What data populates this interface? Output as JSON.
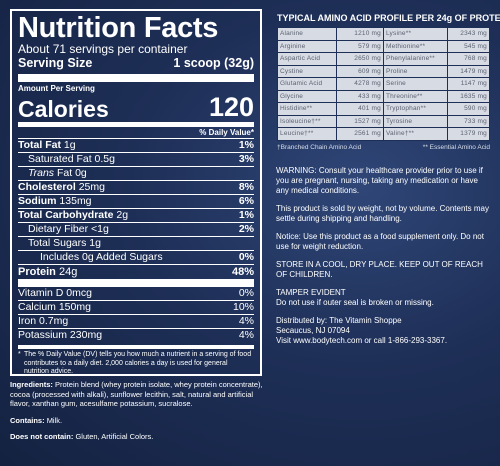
{
  "nutrition": {
    "title": "Nutrition Facts",
    "servings": "About 71 servings per container",
    "serving_size_label": "Serving Size",
    "serving_size_value": "1 scoop (32g)",
    "amount_per_serving": "Amount Per Serving",
    "calories_label": "Calories",
    "calories_value": "120",
    "dv_header": "% Daily Value*",
    "total_fat_label": "Total Fat",
    "total_fat_amt": "1g",
    "total_fat_dv": "1%",
    "sat_fat": "Saturated Fat 0.5g",
    "sat_fat_dv": "3%",
    "trans_fat_label": "Trans",
    "trans_fat_rest": "Fat 0g",
    "cholesterol_label": "Cholesterol",
    "cholesterol_amt": "25mg",
    "cholesterol_dv": "8%",
    "sodium_label": "Sodium",
    "sodium_amt": "135mg",
    "sodium_dv": "6%",
    "carb_label": "Total Carbohydrate",
    "carb_amt": "2g",
    "carb_dv": "1%",
    "fiber": "Dietary Fiber <1g",
    "fiber_dv": "2%",
    "sugars": "Total Sugars 1g",
    "added_sugars": "Includes 0g Added Sugars",
    "added_sugars_dv": "0%",
    "protein_label": "Protein",
    "protein_amt": "24g",
    "protein_dv": "48%",
    "vitd": "Vitamin D 0mcg",
    "vitd_dv": "0%",
    "calcium": "Calcium 150mg",
    "calcium_dv": "10%",
    "iron": "Iron 0.7mg",
    "iron_dv": "4%",
    "potassium": "Potassium 230mg",
    "potassium_dv": "4%",
    "footnote_star": "*",
    "footnote": "The % Daily Value (DV) tells you how much a nutrient in a serving of food contributes to a daily diet. 2,000 calories a day is used for general nutrition advice."
  },
  "amino": {
    "heading": "TYPICAL AMINO ACID PROFILE PER 24g OF PROTEIN",
    "rows": [
      [
        "Alanine",
        "1210 mg",
        "Lysine**",
        "2343 mg"
      ],
      [
        "Arginine",
        "579 mg",
        "Methionine**",
        "545 mg"
      ],
      [
        "Aspartic Acid",
        "2650 mg",
        "Phenylalanine**",
        "768 mg"
      ],
      [
        "Cystine",
        "609 mg",
        "Proline",
        "1479 mg"
      ],
      [
        "Glutamic Acid",
        "4278 mg",
        "Serine",
        "1147 mg"
      ],
      [
        "Glycine",
        "433 mg",
        "Threonine**",
        "1635 mg"
      ],
      [
        "Histidine**",
        "401 mg",
        "Tryptophan**",
        "590 mg"
      ],
      [
        "Isoleucine†**",
        "1527 mg",
        "Tyrosine",
        "733 mg"
      ],
      [
        "Leucine†**",
        "2561 mg",
        "Valine†**",
        "1379 mg"
      ]
    ],
    "legend_left": "†Branched Chain Amino Acid",
    "legend_right": "** Essential Amino Acid"
  },
  "info": {
    "warning": "WARNING: Consult your healthcare provider prior to use if you are pregnant, nursing, taking any medication or have any medical conditions.",
    "weight": "This product is sold by weight, not by volume. Contents may settle during shipping and handling.",
    "notice": "Notice: Use this product as a food supplement only. Do not use for weight reduction.",
    "store": "STORE IN A COOL, DRY PLACE. KEEP OUT OF REACH OF CHILDREN.",
    "tamper_title": "TAMPER EVIDENT",
    "tamper": "Do not use if outer seal is broken or missing.",
    "dist_1": "Distributed by: The Vitamin Shoppe",
    "dist_2": "Secaucus, NJ 07094",
    "dist_3": "Visit www.bodytech.com or call 1-866-293-3367."
  },
  "ingredients": {
    "label": "Ingredients:",
    "text": "Protein blend (whey protein isolate, whey protein concentrate), cocoa (processed with alkali), sunflower lecithin, salt, natural and artificial flavor, xanthan gum, acesulfame potassium, sucralose.",
    "contains_label": "Contains:",
    "contains": "Milk.",
    "not_contain_label": "Does not contain:",
    "not_contain": "Gluten, Artificial Colors."
  }
}
